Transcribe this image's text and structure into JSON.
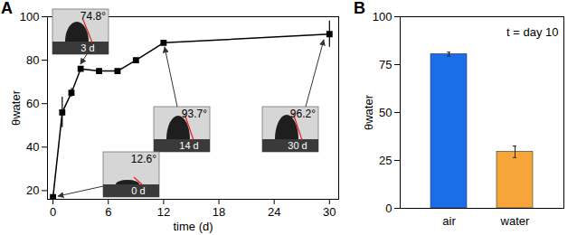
{
  "chart_data": [
    {
      "type": "line",
      "panel_label": "A",
      "x_label": "time (d)",
      "y_label": "θwater",
      "x": [
        0,
        1,
        2,
        3,
        5,
        7,
        9,
        12,
        30
      ],
      "values": [
        17,
        56,
        65,
        76,
        75,
        75,
        80,
        88,
        92
      ],
      "errors": [
        0,
        7,
        2,
        1,
        1,
        1,
        1,
        1,
        6
      ],
      "color": "#000000",
      "marker": "square",
      "xlim": [
        -0.6,
        31
      ],
      "xticks": [
        0,
        6,
        12,
        18,
        24,
        30
      ],
      "ylim": [
        16,
        100
      ],
      "yticks": [
        20,
        40,
        60,
        80,
        100
      ],
      "grid": false,
      "annotations": [
        {
          "text": "74.8°",
          "label": "3 d"
        },
        {
          "text": "93.7°",
          "label": "14 d"
        },
        {
          "text": "96.2°",
          "label": "30 d"
        },
        {
          "text": "12.6°",
          "label": "0 d"
        }
      ]
    },
    {
      "type": "bar",
      "panel_label": "B",
      "y_label": "θwater",
      "annotation": "t = day 10",
      "categories": [
        "air",
        "water"
      ],
      "values": [
        80.5,
        29.5
      ],
      "errors": [
        1,
        3
      ],
      "colors": [
        "#1a6fe8",
        "#f5a53a"
      ],
      "ylim": [
        0,
        100
      ],
      "yticks": [
        0,
        25,
        50,
        75,
        100
      ],
      "grid": false
    }
  ]
}
